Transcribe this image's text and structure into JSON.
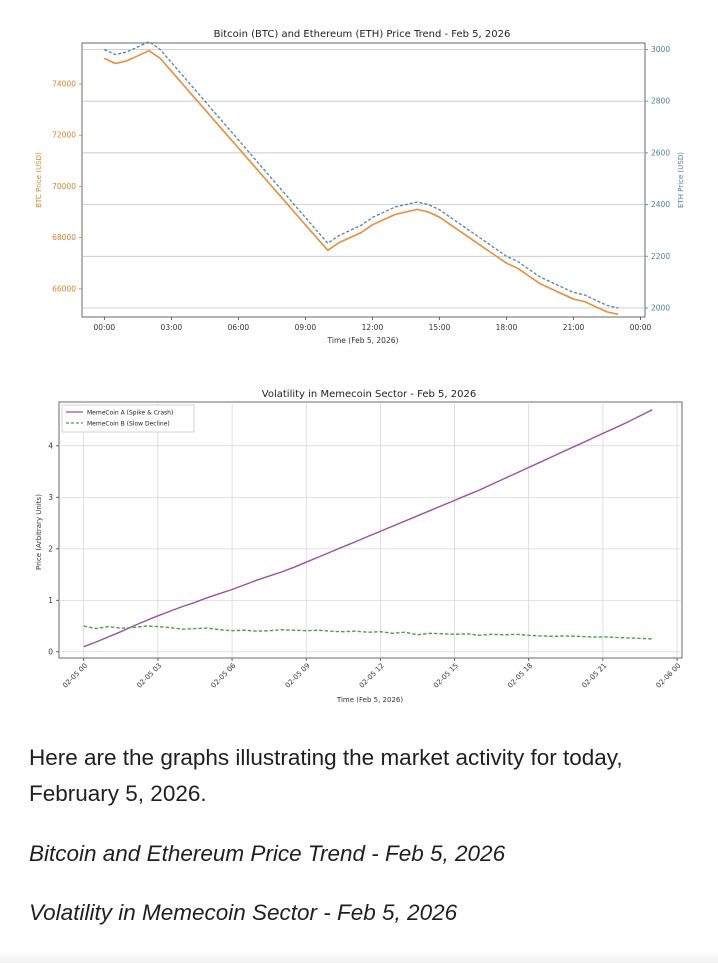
{
  "chart_data": [
    {
      "type": "line",
      "title": "Bitcoin (BTC) and Ethereum (ETH) Price Trend - Feb 5, 2026",
      "xlabel": "Time (Feb 5, 2026)",
      "ylabel": "BTC Price (USD)",
      "y2label": "ETH Price (USD)",
      "xlim": [
        -1.0,
        24.2
      ],
      "ylim": [
        64900,
        75600
      ],
      "y2lim": [
        1965,
        3025
      ],
      "x_ticks": [
        0,
        3,
        6,
        9,
        12,
        15,
        18,
        21,
        24
      ],
      "x_tick_labels": [
        "00:00",
        "03:00",
        "06:00",
        "09:00",
        "12:00",
        "15:00",
        "18:00",
        "21:00",
        "00:00"
      ],
      "y_ticks": [
        66000,
        68000,
        70000,
        72000,
        74000
      ],
      "y_tick_labels": [
        "66000",
        "68000",
        "70000",
        "72000",
        "74000"
      ],
      "y2_ticks": [
        2000,
        2200,
        2400,
        2600,
        2800,
        3000
      ],
      "y2_tick_labels": [
        "2000",
        "2200",
        "2400",
        "2600",
        "2800",
        "3000"
      ],
      "grid": true,
      "colors": {
        "btc": "#e88b3a",
        "eth": "#4a7aa8",
        "axis_btc": "#d9822b",
        "axis_eth": "#4e7ea6"
      },
      "series": [
        {
          "axis": "left",
          "x": [
            0,
            0.5,
            1,
            1.5,
            2,
            2.5,
            3,
            3.5,
            4,
            4.5,
            5,
            5.5,
            6,
            6.5,
            7,
            7.5,
            8,
            8.5,
            9,
            9.5,
            10,
            10.5,
            11,
            11.5,
            12,
            12.5,
            13,
            13.5,
            14,
            14.5,
            15,
            15.5,
            16,
            16.5,
            17,
            17.5,
            18,
            18.5,
            19,
            19.5,
            20,
            20.5,
            21,
            21.5,
            22,
            22.5,
            23
          ],
          "values": [
            75000,
            74800,
            74900,
            75100,
            75300,
            75000,
            74500,
            74000,
            73500,
            73000,
            72500,
            72000,
            71500,
            71000,
            70500,
            70000,
            69500,
            69000,
            68500,
            68000,
            67500,
            67800,
            68000,
            68200,
            68500,
            68700,
            68900,
            69000,
            69100,
            69000,
            68800,
            68500,
            68200,
            67900,
            67600,
            67300,
            67000,
            66800,
            66500,
            66200,
            66000,
            65800,
            65600,
            65500,
            65300,
            65100,
            65000
          ]
        },
        {
          "axis": "right",
          "x": [
            0,
            0.5,
            1,
            1.5,
            2,
            2.5,
            3,
            3.5,
            4,
            4.5,
            5,
            5.5,
            6,
            6.5,
            7,
            7.5,
            8,
            8.5,
            9,
            9.5,
            10,
            10.5,
            11,
            11.5,
            12,
            12.5,
            13,
            13.5,
            14,
            14.5,
            15,
            15.5,
            16,
            16.5,
            17,
            17.5,
            18,
            18.5,
            19,
            19.5,
            20,
            20.5,
            21,
            21.5,
            22,
            22.5,
            23
          ],
          "values": [
            3000,
            2980,
            2990,
            3010,
            3030,
            3000,
            2950,
            2900,
            2850,
            2800,
            2750,
            2700,
            2650,
            2600,
            2550,
            2500,
            2450,
            2400,
            2350,
            2300,
            2250,
            2280,
            2300,
            2320,
            2350,
            2370,
            2390,
            2400,
            2410,
            2400,
            2380,
            2350,
            2320,
            2290,
            2260,
            2230,
            2200,
            2180,
            2150,
            2120,
            2100,
            2080,
            2060,
            2050,
            2030,
            2010,
            2000
          ]
        }
      ]
    },
    {
      "type": "line",
      "title": "Volatility in Memecoin Sector - Feb 5, 2026",
      "xlabel": "Time (Feb 5, 2026)",
      "ylabel": "Price (Arbitrary Units)",
      "xlim": [
        -1.0,
        24.2
      ],
      "ylim": [
        -0.12,
        4.85
      ],
      "x_ticks": [
        0,
        3,
        6,
        9,
        12,
        15,
        18,
        21,
        24
      ],
      "x_tick_labels": [
        "02-05 00",
        "02-05 03",
        "02-05 06",
        "02-05 09",
        "02-05 12",
        "02-05 15",
        "02-05 18",
        "02-05 21",
        "02-06 00"
      ],
      "y_ticks": [
        0,
        1,
        2,
        3,
        4
      ],
      "y_tick_labels": [
        "0",
        "1",
        "2",
        "3",
        "4"
      ],
      "grid": true,
      "legend_position": "top-left",
      "series": [
        {
          "name": "MemeCoin A (Spike & Crash)",
          "style": "solid",
          "color": "#9c4fa6",
          "x": [
            0,
            0.5,
            1,
            1.5,
            2,
            2.5,
            3,
            3.5,
            4,
            4.5,
            5,
            5.5,
            6,
            6.5,
            7,
            7.5,
            8,
            8.5,
            9,
            9.5,
            10,
            10.5,
            11,
            11.5,
            12,
            12.5,
            13,
            13.5,
            14,
            14.5,
            15,
            15.5,
            16,
            16.5,
            17,
            17.5,
            18,
            18.5,
            19,
            19.5,
            20,
            20.5,
            21,
            21.5,
            22,
            22.5,
            23
          ],
          "values": [
            0.1,
            0.19,
            0.29,
            0.39,
            0.5,
            0.6,
            0.7,
            0.79,
            0.88,
            0.96,
            1.05,
            1.13,
            1.21,
            1.3,
            1.39,
            1.47,
            1.55,
            1.64,
            1.74,
            1.84,
            1.94,
            2.04,
            2.14,
            2.24,
            2.34,
            2.44,
            2.54,
            2.64,
            2.74,
            2.84,
            2.94,
            3.04,
            3.14,
            3.25,
            3.36,
            3.47,
            3.58,
            3.69,
            3.8,
            3.91,
            4.02,
            4.13,
            4.24,
            4.35,
            4.46,
            4.58,
            4.7
          ]
        },
        {
          "name": "MemeCoin B (Slow Decline)",
          "style": "dashed",
          "color": "#4f9e4f",
          "x": [
            0,
            0.5,
            1,
            1.5,
            2,
            2.5,
            3,
            3.5,
            4,
            4.5,
            5,
            5.5,
            6,
            6.5,
            7,
            7.5,
            8,
            8.5,
            9,
            9.5,
            10,
            10.5,
            11,
            11.5,
            12,
            12.5,
            13,
            13.5,
            14,
            14.5,
            15,
            15.5,
            16,
            16.5,
            17,
            17.5,
            18,
            18.5,
            19,
            19.5,
            20,
            20.5,
            21,
            21.5,
            22,
            22.5,
            23
          ],
          "values": [
            0.5,
            0.45,
            0.49,
            0.46,
            0.47,
            0.5,
            0.49,
            0.47,
            0.44,
            0.45,
            0.46,
            0.43,
            0.41,
            0.42,
            0.4,
            0.41,
            0.43,
            0.42,
            0.41,
            0.42,
            0.4,
            0.39,
            0.4,
            0.38,
            0.39,
            0.36,
            0.38,
            0.33,
            0.36,
            0.35,
            0.34,
            0.35,
            0.32,
            0.34,
            0.33,
            0.34,
            0.32,
            0.31,
            0.3,
            0.31,
            0.3,
            0.29,
            0.29,
            0.28,
            0.27,
            0.26,
            0.25
          ]
        }
      ]
    }
  ],
  "text": {
    "intro": "Here are the graphs illustrating the market activity for today, February 5, 2026.",
    "caption1": "Bitcoin and Ethereum Price Trend - Feb 5, 2026",
    "caption2": "Volatility in Memecoin Sector - Feb 5, 2026"
  }
}
